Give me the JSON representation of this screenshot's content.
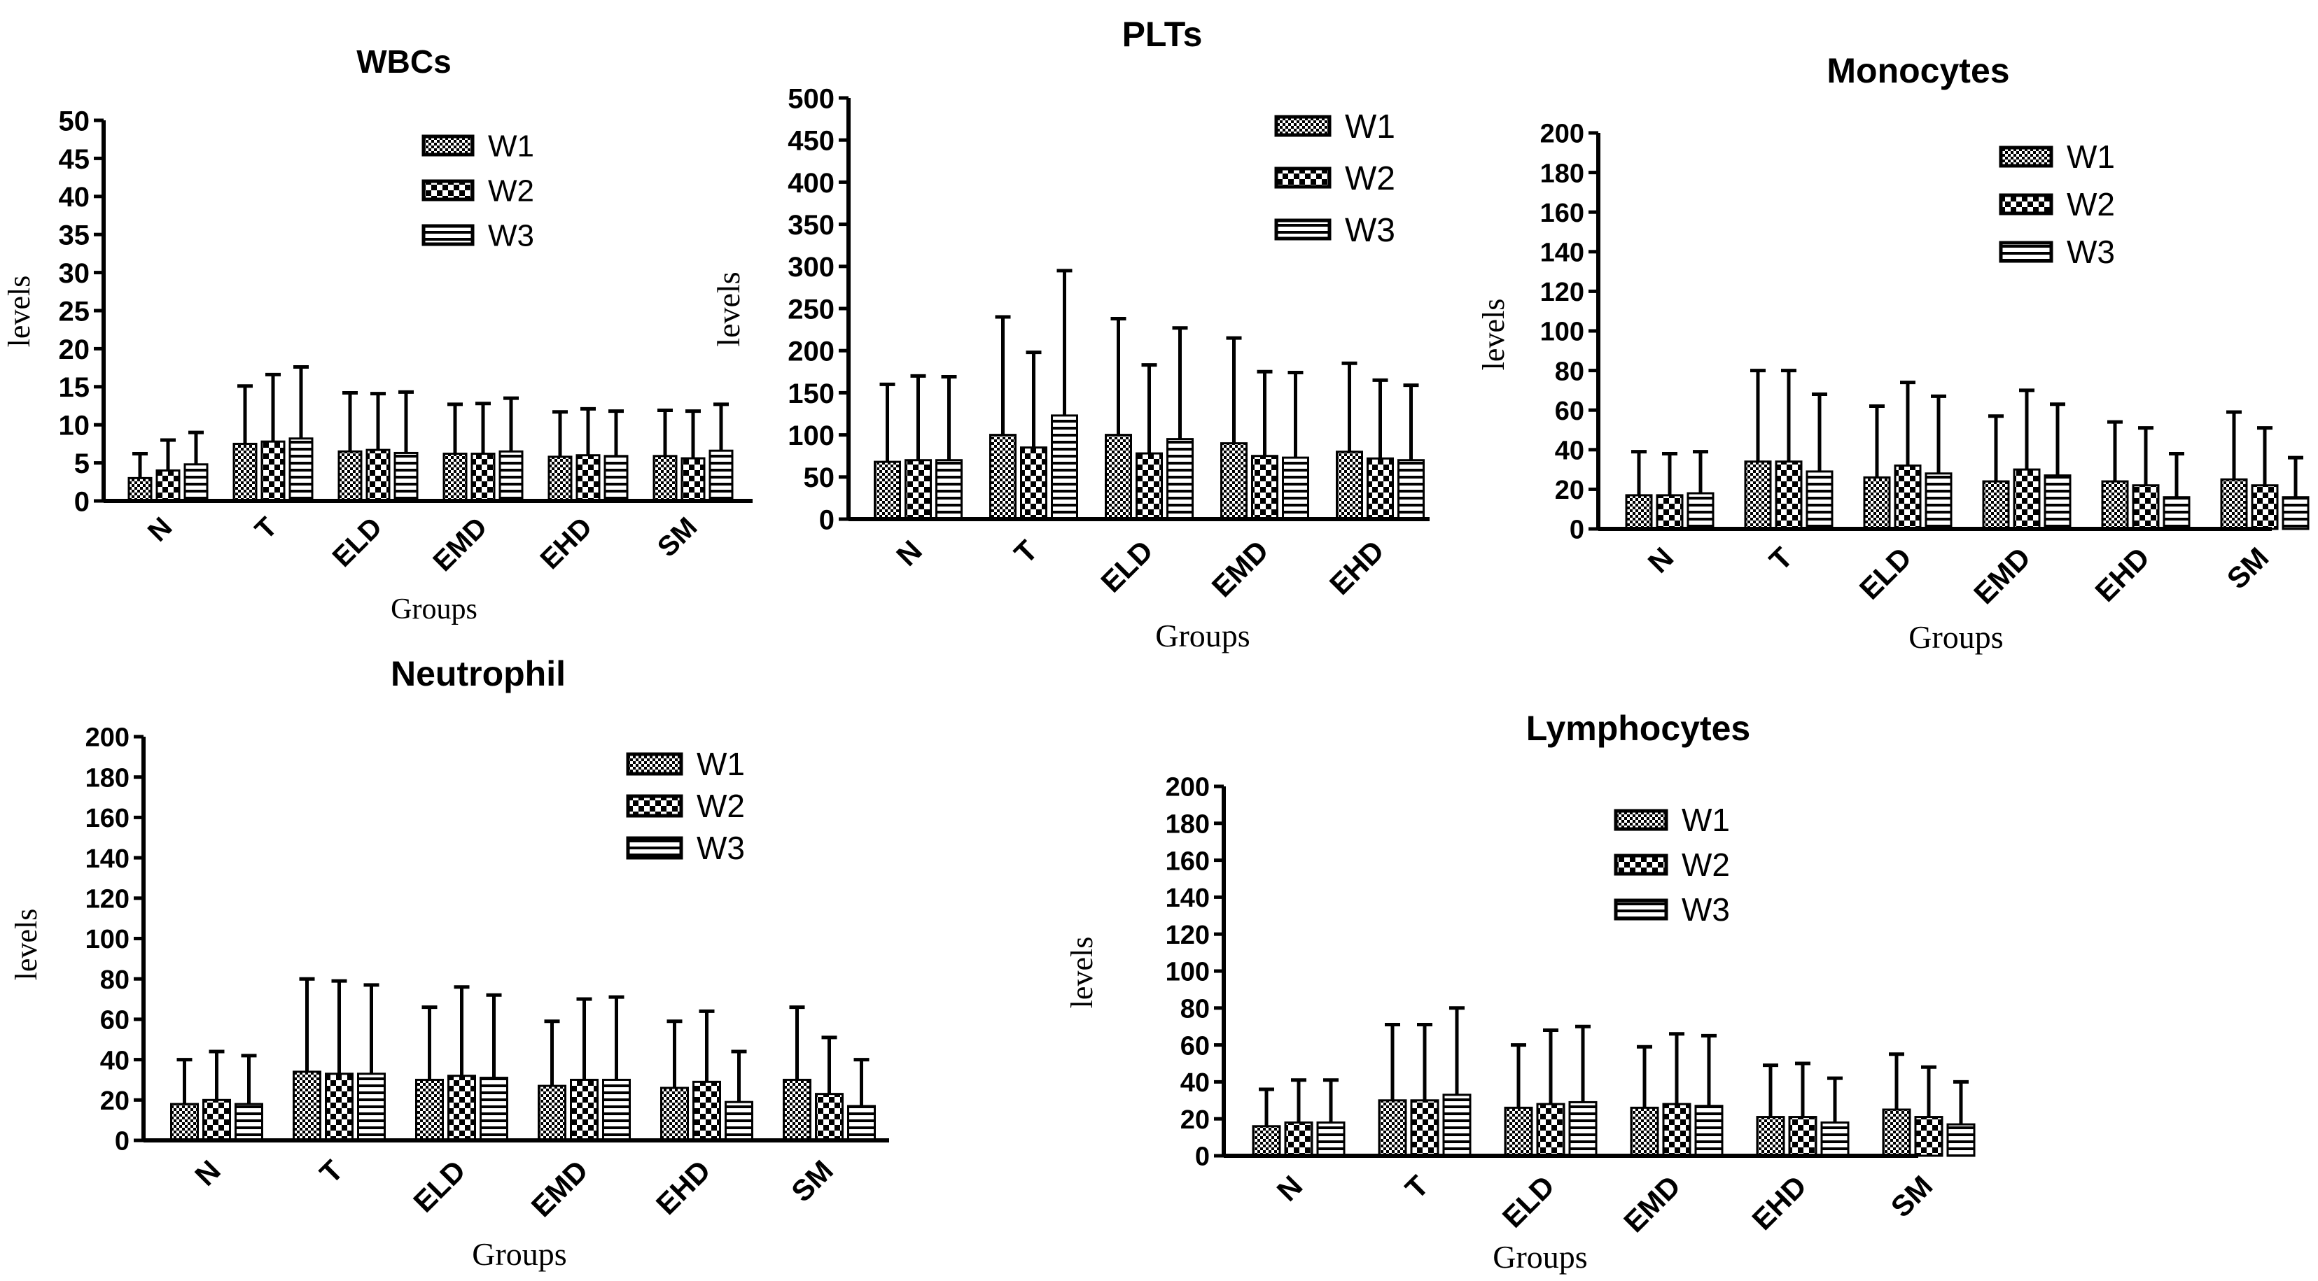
{
  "chart_data": [
    {
      "id": "wbcs",
      "type": "bar",
      "title": "WBCs",
      "xlabel": "Groups",
      "ylabel": "levels",
      "ylim": [
        0,
        50
      ],
      "yticks": [
        0,
        5,
        10,
        15,
        20,
        25,
        30,
        35,
        40,
        45,
        50
      ],
      "categories": [
        "N",
        "T",
        "ELD",
        "EMD",
        "EHD",
        "SM"
      ],
      "series": [
        {
          "name": "W1",
          "pattern": "checker",
          "values": [
            3,
            7.5,
            6.5,
            6.2,
            5.8,
            5.9
          ],
          "errors": [
            3.2,
            7.6,
            7.7,
            6.5,
            5.9,
            6.0
          ]
        },
        {
          "name": "W2",
          "pattern": "bigchecker",
          "values": [
            4,
            7.8,
            6.7,
            6.2,
            6.0,
            5.6
          ],
          "errors": [
            4.0,
            8.8,
            7.4,
            6.6,
            6.1,
            6.2
          ]
        },
        {
          "name": "W3",
          "pattern": "hstripes",
          "values": [
            4.8,
            8.2,
            6.3,
            6.5,
            5.9,
            6.6
          ],
          "errors": [
            4.2,
            9.4,
            8.0,
            7.0,
            5.9,
            6.1
          ]
        }
      ],
      "legend": "top-right"
    },
    {
      "id": "plts",
      "type": "bar",
      "title": "PLTs",
      "xlabel": "Groups",
      "ylabel": "levels",
      "ylim": [
        0,
        500
      ],
      "yticks": [
        0,
        50,
        100,
        150,
        200,
        250,
        300,
        350,
        400,
        450,
        500
      ],
      "categories": [
        "N",
        "T",
        "ELD",
        "EMD",
        "EHD"
      ],
      "series": [
        {
          "name": "W1",
          "pattern": "checker",
          "values": [
            68,
            100,
            100,
            90,
            80
          ],
          "errors": [
            92,
            140,
            138,
            125,
            105
          ]
        },
        {
          "name": "W2",
          "pattern": "bigchecker",
          "values": [
            70,
            85,
            78,
            75,
            72
          ],
          "errors": [
            100,
            113,
            105,
            100,
            93
          ]
        },
        {
          "name": "W3",
          "pattern": "hstripes",
          "values": [
            70,
            123,
            95,
            73,
            70
          ],
          "errors": [
            99,
            172,
            132,
            101,
            89
          ]
        }
      ],
      "legend": "top-right"
    },
    {
      "id": "monocytes",
      "type": "bar",
      "title": "Monocytes",
      "xlabel": "Groups",
      "ylabel": "levels",
      "ylim": [
        0,
        200
      ],
      "yticks": [
        0,
        20,
        40,
        60,
        80,
        100,
        120,
        140,
        160,
        180,
        200
      ],
      "categories": [
        "N",
        "T",
        "ELD",
        "EMD",
        "EHD",
        "SM"
      ],
      "series": [
        {
          "name": "W1",
          "pattern": "checker",
          "values": [
            17,
            34,
            26,
            24,
            24,
            25
          ],
          "errors": [
            22,
            46,
            36,
            33,
            30,
            34
          ]
        },
        {
          "name": "W2",
          "pattern": "bigchecker",
          "values": [
            17,
            34,
            32,
            30,
            22,
            22
          ],
          "errors": [
            21,
            46,
            42,
            40,
            29,
            29
          ]
        },
        {
          "name": "W3",
          "pattern": "hstripes",
          "values": [
            18,
            29,
            28,
            27,
            16,
            16
          ],
          "errors": [
            21,
            39,
            39,
            36,
            22,
            20
          ]
        }
      ],
      "legend": "top-right"
    },
    {
      "id": "neutrophil",
      "type": "bar",
      "title": "Neutrophil",
      "xlabel": "Groups",
      "ylabel": "levels",
      "ylim": [
        0,
        200
      ],
      "yticks": [
        0,
        20,
        40,
        60,
        80,
        100,
        120,
        140,
        160,
        180,
        200
      ],
      "categories": [
        "N",
        "T",
        "ELD",
        "EMD",
        "EHD",
        "SM"
      ],
      "series": [
        {
          "name": "W1",
          "pattern": "checker",
          "values": [
            18,
            34,
            30,
            27,
            26,
            30
          ],
          "errors": [
            22,
            46,
            36,
            32,
            33,
            36
          ]
        },
        {
          "name": "W2",
          "pattern": "bigchecker",
          "values": [
            20,
            33,
            32,
            30,
            29,
            23
          ],
          "errors": [
            24,
            46,
            44,
            40,
            35,
            28
          ]
        },
        {
          "name": "W3",
          "pattern": "hstripes",
          "values": [
            18,
            33,
            31,
            30,
            19,
            17
          ],
          "errors": [
            24,
            44,
            41,
            41,
            25,
            23
          ]
        }
      ],
      "legend": "top-right"
    },
    {
      "id": "lymphocytes",
      "type": "bar",
      "title": "Lymphocytes",
      "xlabel": "Groups",
      "ylabel": "levels",
      "ylim": [
        0,
        200
      ],
      "yticks": [
        0,
        20,
        40,
        60,
        80,
        100,
        120,
        140,
        160,
        180,
        200
      ],
      "categories": [
        "N",
        "T",
        "ELD",
        "EMD",
        "EHD",
        "SM"
      ],
      "series": [
        {
          "name": "W1",
          "pattern": "checker",
          "values": [
            16,
            30,
            26,
            26,
            21,
            25
          ],
          "errors": [
            20,
            41,
            34,
            33,
            28,
            30
          ]
        },
        {
          "name": "W2",
          "pattern": "bigchecker",
          "values": [
            18,
            30,
            28,
            28,
            21,
            21
          ],
          "errors": [
            23,
            41,
            40,
            38,
            29,
            27
          ]
        },
        {
          "name": "W3",
          "pattern": "hstripes",
          "values": [
            18,
            33,
            29,
            27,
            18,
            17
          ],
          "errors": [
            23,
            47,
            41,
            38,
            24,
            23
          ]
        }
      ],
      "legend": "top-right"
    }
  ]
}
